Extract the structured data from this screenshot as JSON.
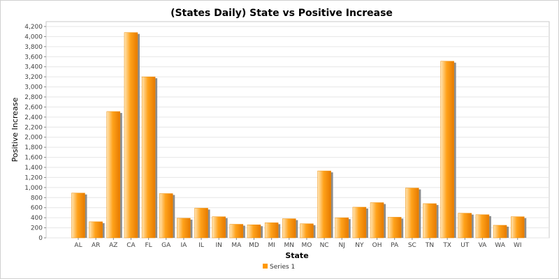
{
  "chart_data": {
    "type": "bar",
    "title": "(States Daily) State vs Positive Increase",
    "xlabel": "State",
    "ylabel": "Positive Increase",
    "ylim": [
      0,
      4200
    ],
    "yticks": [
      0,
      200,
      400,
      600,
      800,
      1000,
      1200,
      1400,
      1600,
      1800,
      2000,
      2200,
      2400,
      2600,
      2800,
      3000,
      3200,
      3400,
      3600,
      3800,
      4000,
      4200
    ],
    "ytick_labels": [
      "0",
      "200",
      "400",
      "600",
      "800",
      "1,000",
      "1,200",
      "1,400",
      "1,600",
      "1,800",
      "2,000",
      "2,200",
      "2,400",
      "2,600",
      "2,800",
      "3,000",
      "3,200",
      "3,400",
      "3,600",
      "3,800",
      "4,000",
      "4,200"
    ],
    "grid": true,
    "legend_position": "bottom-center",
    "categories": [
      "AL",
      "AR",
      "AZ",
      "CA",
      "FL",
      "GA",
      "IA",
      "IL",
      "IN",
      "MA",
      "MD",
      "MI",
      "MN",
      "MO",
      "NC",
      "NJ",
      "NY",
      "OH",
      "PA",
      "SC",
      "TN",
      "TX",
      "UT",
      "VA",
      "WA",
      "WI"
    ],
    "series": [
      {
        "name": "Series 1",
        "color": "#ff9900",
        "values": [
          890,
          320,
          2510,
          4080,
          3200,
          880,
          390,
          590,
          420,
          270,
          260,
          300,
          380,
          280,
          1330,
          400,
          610,
          700,
          410,
          990,
          680,
          3510,
          490,
          460,
          250,
          420
        ]
      }
    ]
  }
}
